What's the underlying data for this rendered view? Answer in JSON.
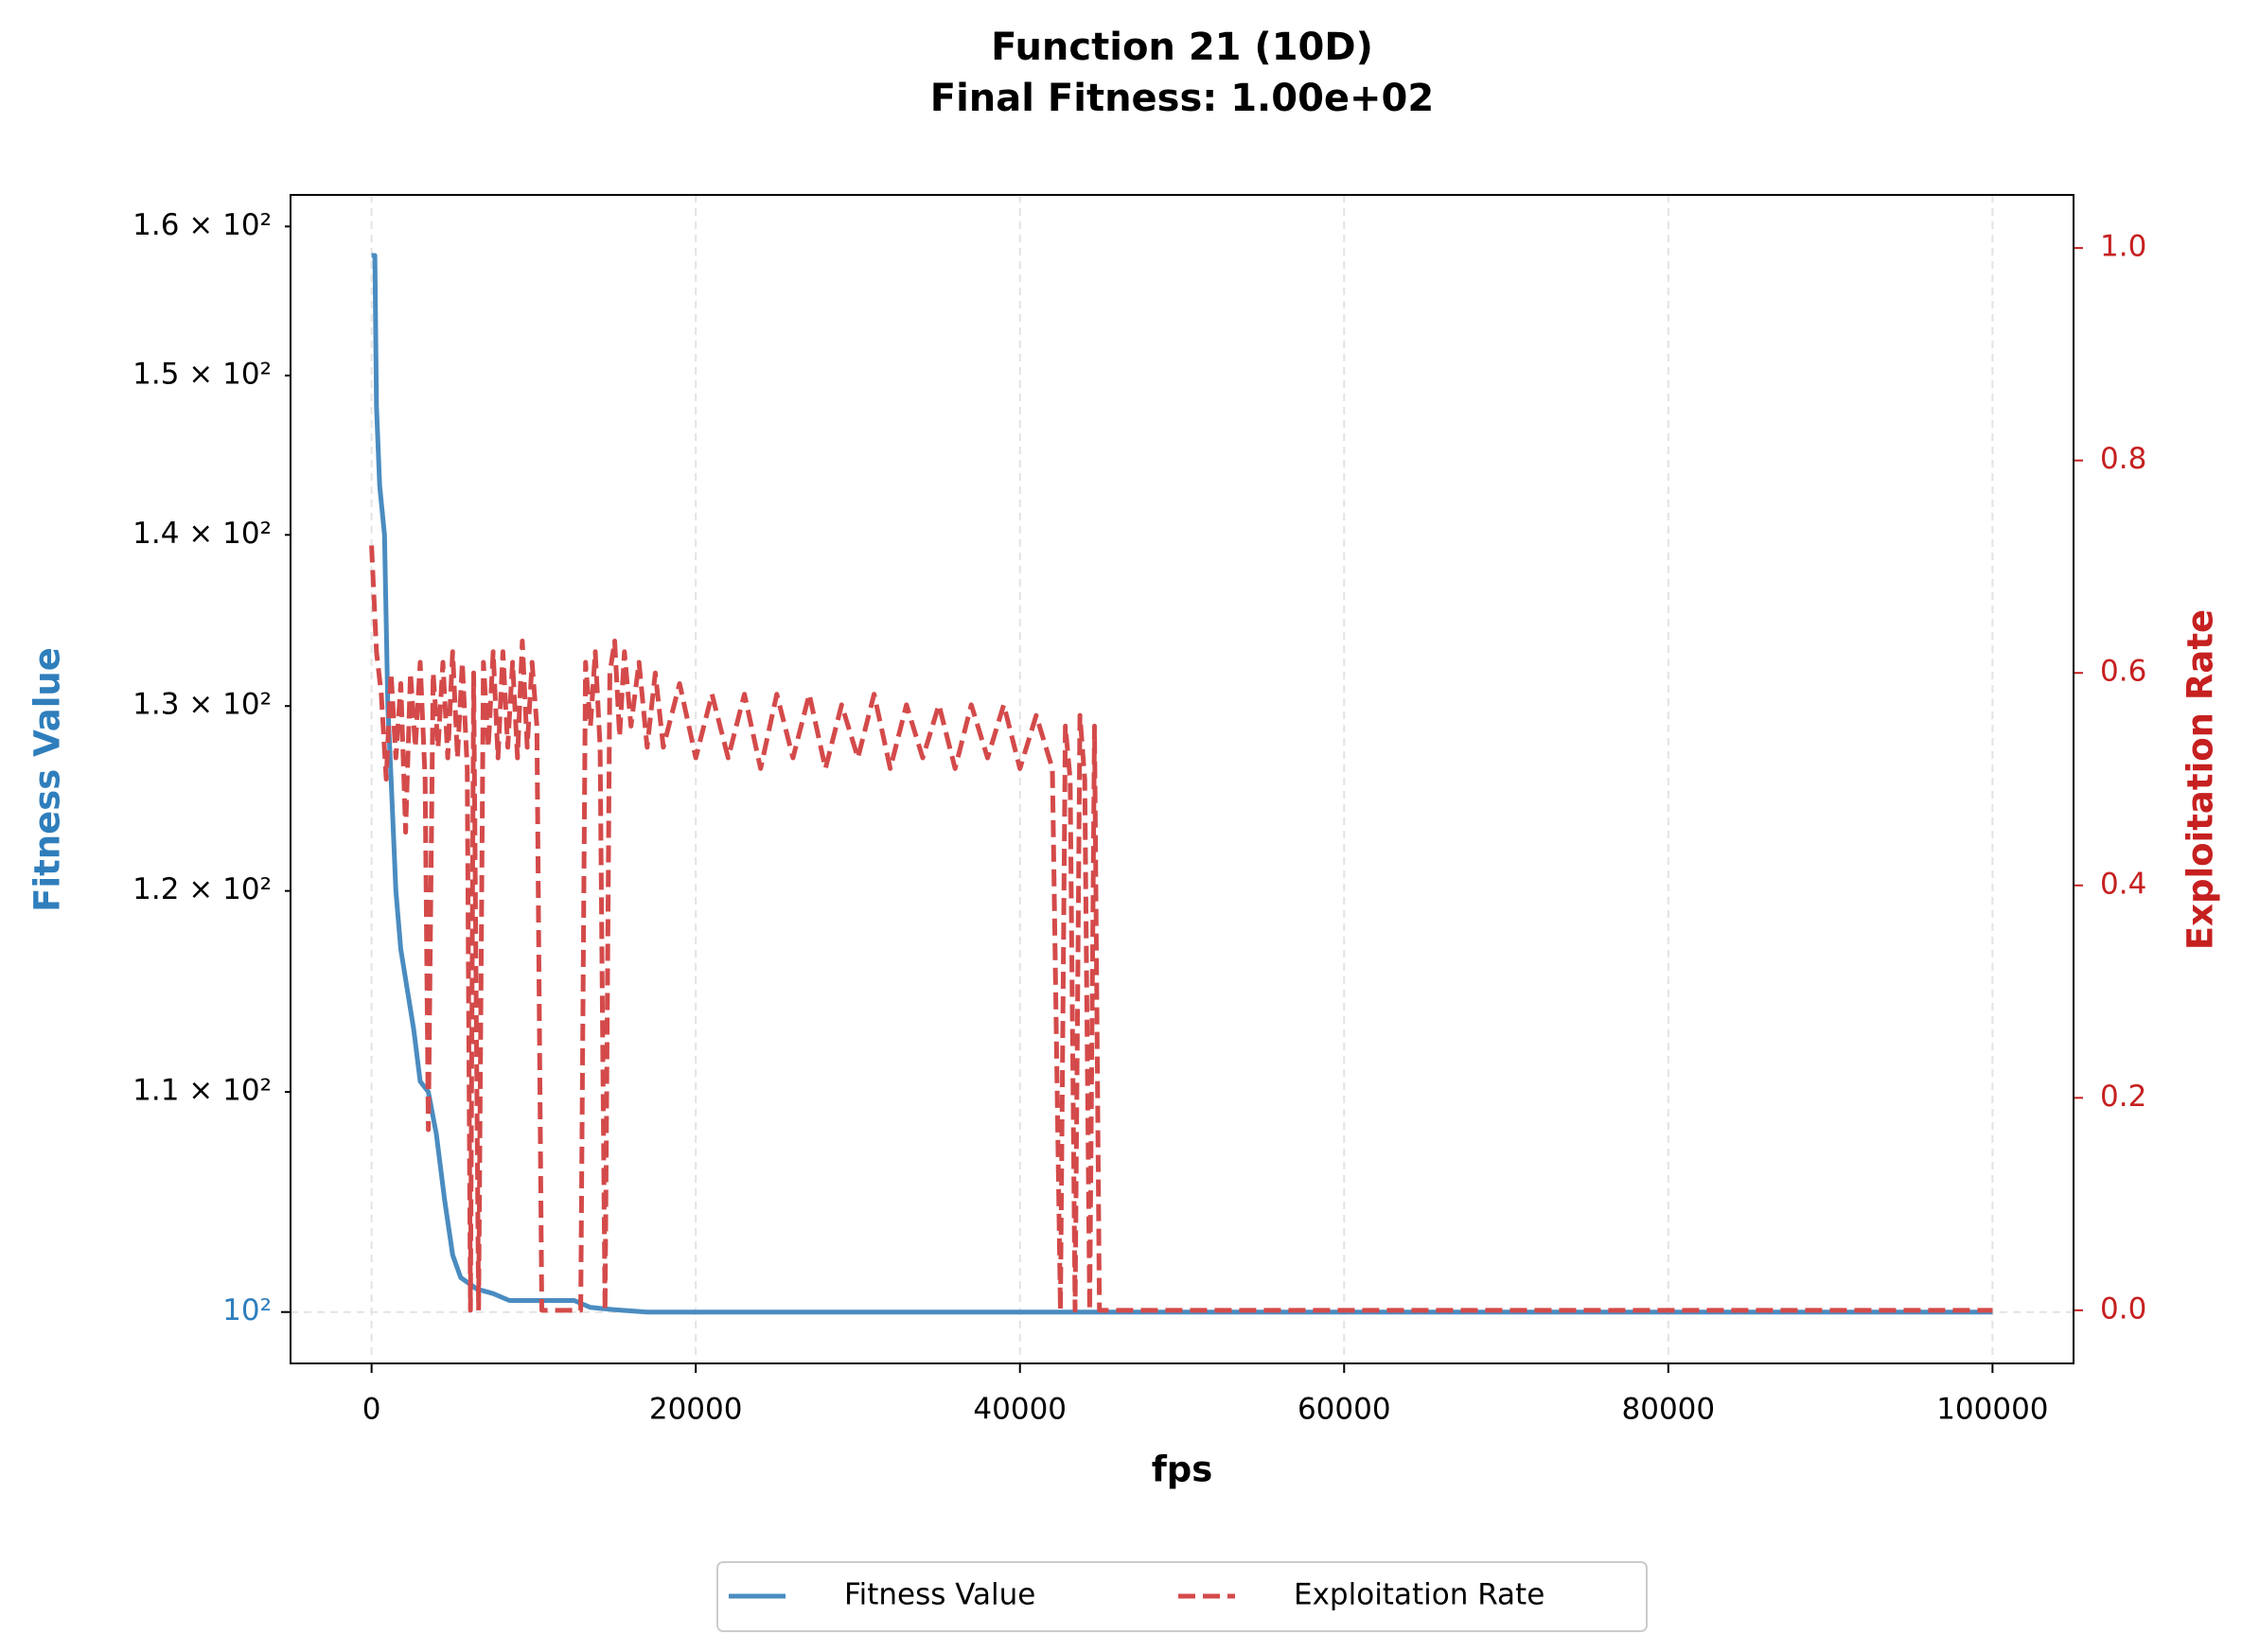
{
  "chart_data": {
    "type": "line",
    "title": "Function 21 (10D)",
    "subtitle": "Final Fitness: 1.00e+02",
    "x_label": "fps",
    "y_label": "Fitness Value",
    "y2_label": "Exploitation Rate",
    "y_scale": "log",
    "grid": true,
    "legend": "bottom",
    "xlim": [
      -5000,
      105000
    ],
    "xticks": [
      0,
      20000,
      40000,
      60000,
      80000,
      100000
    ],
    "ylim": [
      97.8,
      162.2
    ],
    "yticks": [
      {
        "value": 100,
        "label": "10²"
      },
      {
        "value": 110,
        "label": "1.1 × 10²"
      },
      {
        "value": 120,
        "label": "1.2 × 10²"
      },
      {
        "value": 130,
        "label": "1.3 × 10²"
      },
      {
        "value": 140,
        "label": "1.4 × 10²"
      },
      {
        "value": 150,
        "label": "1.5 × 10²"
      },
      {
        "value": 160,
        "label": "1.6 × 10²"
      }
    ],
    "y2lim": [
      -0.05,
      1.05
    ],
    "y2ticks": [
      {
        "value": 0,
        "label": "0.0"
      },
      0.2,
      0.4,
      0.6,
      0.8,
      {
        "value": 1,
        "label": "1.0"
      }
    ],
    "series": [
      {
        "name": "Fitness Value",
        "color": "#4a8cc1",
        "dash": "solid",
        "x": [
          0,
          200,
          300,
          500,
          800,
          1000,
          1200,
          1500,
          1800,
          2200,
          2600,
          3000,
          3500,
          4000,
          4500,
          5000,
          5500,
          6500,
          7500,
          8500,
          10000,
          12500,
          13500,
          15000,
          17000,
          100000
        ],
        "values": [
          158,
          158,
          148,
          143,
          140,
          130,
          126,
          120,
          117,
          115,
          113,
          110.5,
          110,
          108,
          105,
          102.5,
          101.5,
          101,
          100.8,
          100.5,
          100.5,
          100.5,
          100.2,
          100.1,
          100,
          100
        ]
      },
      {
        "name": "Exploitation Rate",
        "color": "#d44a4a",
        "dash": "dashed",
        "axis": "y2",
        "x": [
          0,
          300,
          600,
          900,
          1200,
          1500,
          1800,
          2100,
          2400,
          2700,
          3000,
          3300,
          3500,
          3800,
          4100,
          4400,
          4700,
          5000,
          5300,
          5600,
          5900,
          6100,
          6300,
          6600,
          6900,
          7200,
          7500,
          7800,
          8100,
          8400,
          8700,
          9000,
          9300,
          9600,
          9900,
          10200,
          10500,
          12900,
          13200,
          13500,
          13800,
          14100,
          14400,
          14700,
          15000,
          15300,
          15600,
          16000,
          16500,
          17000,
          17500,
          18000,
          19000,
          20000,
          21000,
          22000,
          23000,
          24000,
          25000,
          26000,
          27000,
          28000,
          29000,
          30000,
          31000,
          32000,
          33000,
          34000,
          35000,
          36000,
          37000,
          38000,
          39000,
          40000,
          41000,
          42000,
          42500,
          42800,
          43100,
          43400,
          43700,
          44000,
          44300,
          44600,
          44900,
          100000
        ],
        "values": [
          0.72,
          0.62,
          0.58,
          0.5,
          0.6,
          0.52,
          0.59,
          0.45,
          0.6,
          0.53,
          0.61,
          0.5,
          0.17,
          0.6,
          0.53,
          0.61,
          0.52,
          0.62,
          0.52,
          0.61,
          0.51,
          0,
          0.6,
          0,
          0.61,
          0.53,
          0.62,
          0.52,
          0.62,
          0.53,
          0.61,
          0.52,
          0.63,
          0.53,
          0.61,
          0.55,
          0,
          0,
          0.61,
          0.55,
          0.62,
          0.53,
          0,
          0.6,
          0.63,
          0.54,
          0.62,
          0.55,
          0.61,
          0.53,
          0.6,
          0.53,
          0.59,
          0.52,
          0.58,
          0.52,
          0.58,
          0.51,
          0.58,
          0.52,
          0.58,
          0.51,
          0.57,
          0.52,
          0.58,
          0.51,
          0.57,
          0.52,
          0.57,
          0.51,
          0.57,
          0.52,
          0.57,
          0.51,
          0.56,
          0.51,
          0,
          0.55,
          0.5,
          0,
          0.56,
          0.5,
          0,
          0.55,
          0,
          0
        ]
      }
    ]
  }
}
